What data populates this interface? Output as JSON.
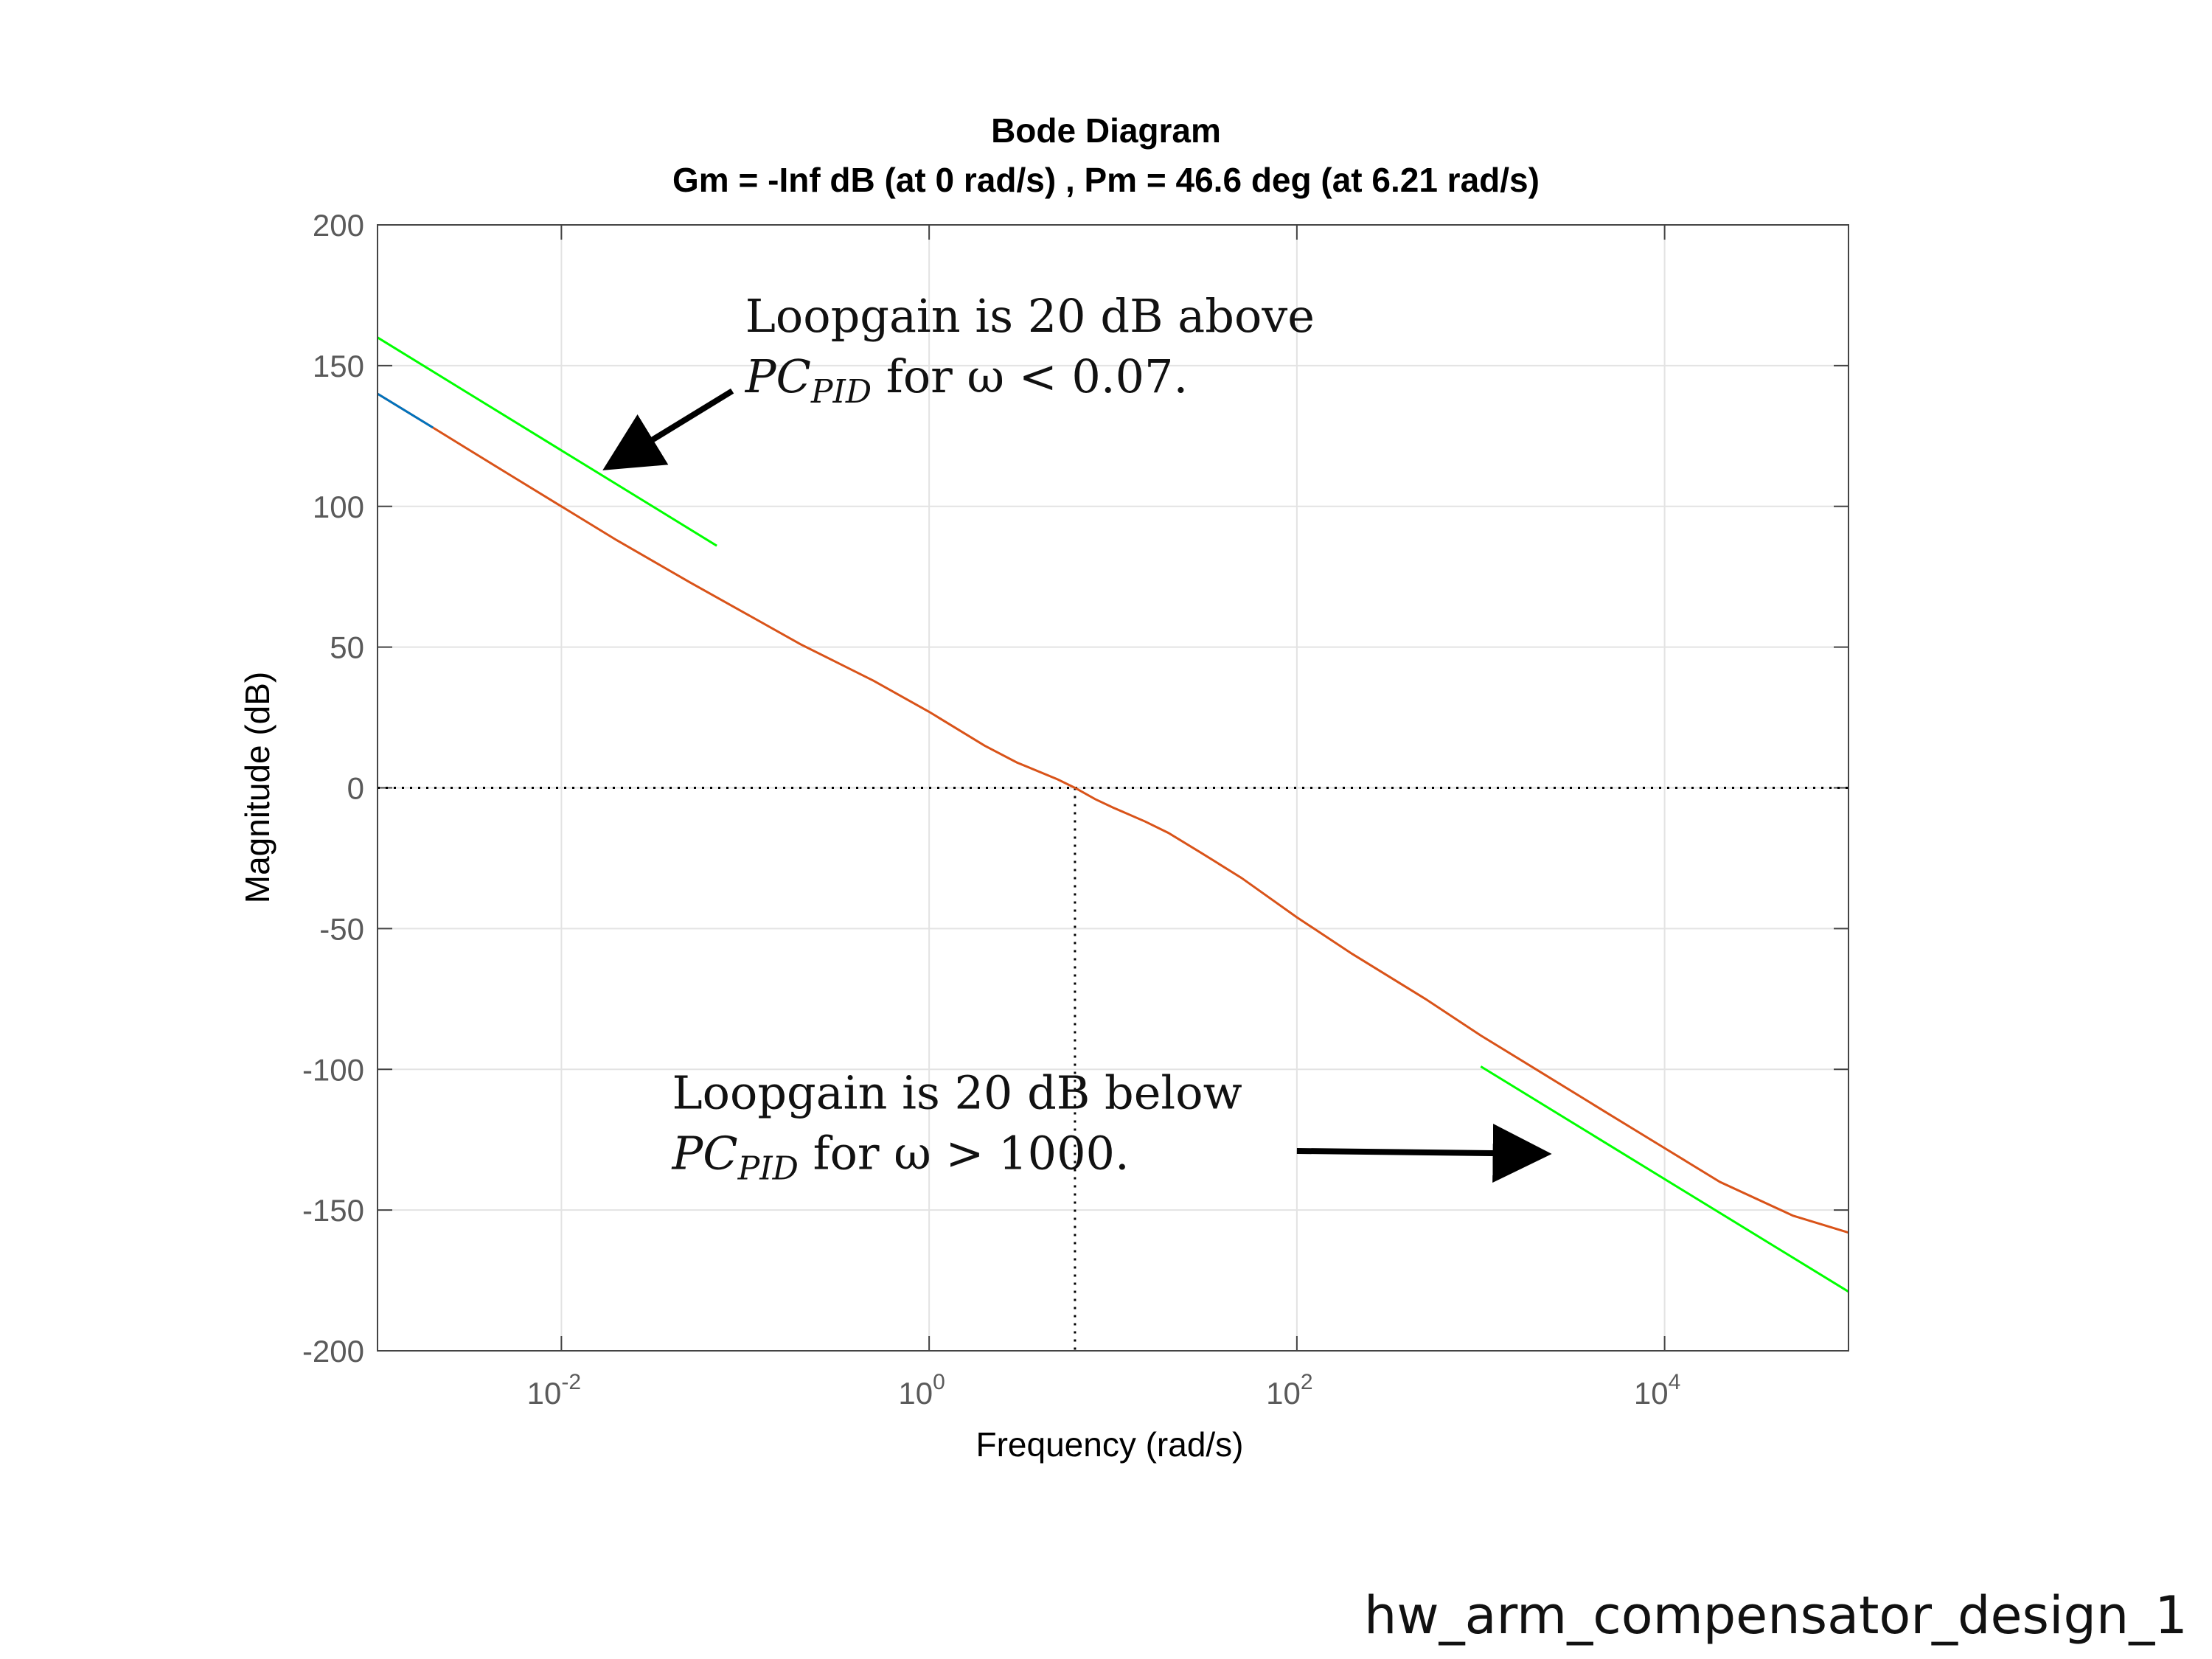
{
  "chart_data": {
    "type": "line",
    "title": "Bode Diagram",
    "subtitle": "Gm = -Inf dB (at 0 rad/s) ,  Pm = 46.6 deg (at 6.21 rad/s)",
    "xlabel": "Frequency  (rad/s)",
    "ylabel": "Magnitude (dB)",
    "xscale": "log",
    "xlim": [
      0.001,
      100000
    ],
    "ylim": [
      -200,
      200
    ],
    "grid": true,
    "xticks": [
      0.01,
      1,
      100,
      10000
    ],
    "xtick_labels": [
      {
        "base": "10",
        "exp": "-2"
      },
      {
        "base": "10",
        "exp": "0"
      },
      {
        "base": "10",
        "exp": "2"
      },
      {
        "base": "10",
        "exp": "4"
      }
    ],
    "yticks": [
      200,
      150,
      100,
      50,
      0,
      -50,
      -100,
      -150,
      -200
    ],
    "colors": {
      "loopgain": "#d95319",
      "pc_pid_low": "#0072bd",
      "bounds": "#00ff00",
      "reference": "#000000"
    },
    "series": [
      {
        "key": "loopgain",
        "x": [
          0.001,
          0.002,
          0.005,
          0.01,
          0.02,
          0.05,
          0.1,
          0.2,
          0.5,
          1,
          2,
          3,
          5,
          6.21,
          8,
          10,
          15,
          20,
          30,
          50,
          100,
          200,
          500,
          1000,
          2000,
          5000,
          10000,
          20000,
          50000,
          100000
        ],
        "y": [
          140,
          128,
          112,
          100,
          88,
          73,
          62,
          51,
          38,
          27,
          15,
          9,
          3,
          0,
          -4,
          -7,
          -12,
          -16,
          -23,
          -32,
          -46,
          -59,
          -75,
          -88,
          -100,
          -116,
          -128,
          -140,
          -152,
          -158
        ]
      },
      {
        "key": "pc_pid_low",
        "x": [
          0.001,
          0.002
        ],
        "y": [
          140,
          128
        ]
      },
      {
        "key": "upper_bound",
        "x": [
          0.001,
          0.07
        ],
        "y": [
          160,
          86
        ]
      },
      {
        "key": "lower_bound",
        "x": [
          1000,
          100000
        ],
        "y": [
          -99,
          -179
        ]
      }
    ],
    "reference_lines": [
      {
        "key": "zero_db",
        "orientation": "horizontal",
        "value": 0
      },
      {
        "key": "crossover",
        "orientation": "vertical",
        "value": 6.21
      }
    ],
    "annotations": [
      {
        "key": "above",
        "line1": "Loopgain is 20 dB above",
        "pc": "PC",
        "sub": "PID",
        "line2_rest": " for ω < 0.07.",
        "text_anchor": [
          0.1,
          162
        ],
        "arrow_from": [
          0.085,
          141
        ],
        "arrow_to": [
          0.019,
          115
        ]
      },
      {
        "key": "below",
        "line1": "Loopgain is 20 dB below",
        "pc": "PC",
        "sub": "PID",
        "line2_rest": " for ω > 1000.",
        "text_anchor": [
          0.04,
          -114
        ],
        "arrow_from": [
          100,
          -129
        ],
        "arrow_to": [
          2100,
          -130
        ]
      }
    ]
  },
  "footer": {
    "label": "hw_arm_compensator_design_1"
  }
}
